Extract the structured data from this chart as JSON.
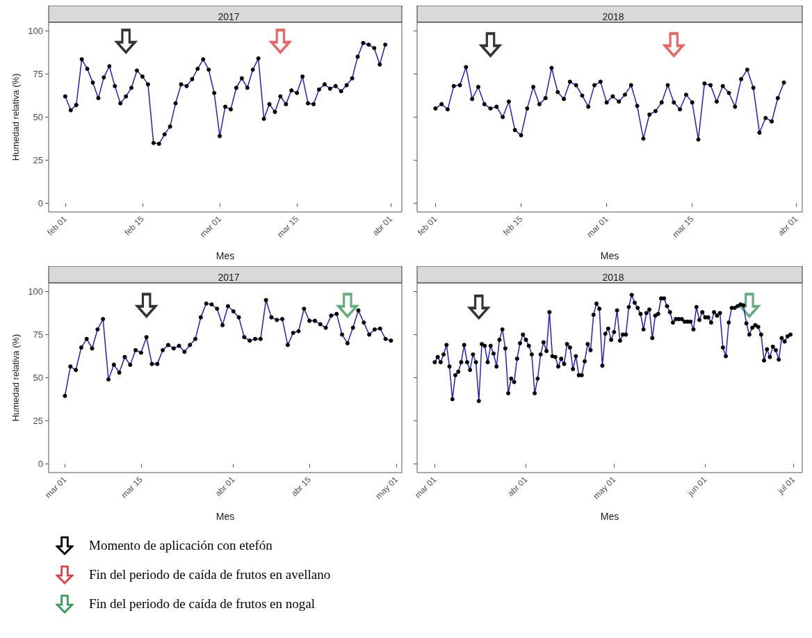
{
  "chart_data": [
    {
      "type": "line",
      "title": "2017",
      "xlabel": "Mes",
      "ylabel": "Humedad relativa (%)",
      "marker": "circle",
      "grid": false,
      "xlim": [
        "--01-29",
        "--04-03"
      ],
      "xticks": [
        {
          "value": "--02-01",
          "label": "feb 01"
        },
        {
          "value": "--02-15",
          "label": "feb 15"
        },
        {
          "value": "--03-01",
          "label": "mar 01"
        },
        {
          "value": "--03-15",
          "label": "mar 15"
        },
        {
          "value": "--04-01",
          "label": "abr 01"
        }
      ],
      "ylim": [
        -5,
        105
      ],
      "yticks": [
        0,
        25,
        50,
        75,
        100
      ],
      "x": [
        "--02-01",
        "--02-02",
        "--02-03",
        "--02-04",
        "--02-05",
        "--02-06",
        "--02-07",
        "--02-08",
        "--02-09",
        "--02-10",
        "--02-11",
        "--02-12",
        "--02-13",
        "--02-14",
        "--02-15",
        "--02-16",
        "--02-17",
        "--02-18",
        "--02-19",
        "--02-20",
        "--02-21",
        "--02-22",
        "--02-23",
        "--02-24",
        "--02-25",
        "--02-26",
        "--02-27",
        "--02-28",
        "--03-01",
        "--03-02",
        "--03-03",
        "--03-04",
        "--03-05",
        "--03-06",
        "--03-07",
        "--03-08",
        "--03-09",
        "--03-10",
        "--03-11",
        "--03-12",
        "--03-13",
        "--03-14",
        "--03-15",
        "--03-16",
        "--03-17",
        "--03-18",
        "--03-19",
        "--03-20",
        "--03-21",
        "--03-22",
        "--03-23",
        "--03-24",
        "--03-25",
        "--03-26",
        "--03-27",
        "--03-28",
        "--03-29",
        "--03-30",
        "--03-31"
      ],
      "series": [
        {
          "type": "scatter",
          "color": "#000000",
          "x": [
            "--02-12"
          ],
          "values": [
            94
          ]
        },
        {
          "type": "scatter",
          "color": "#e04040",
          "x": [
            "--03-12"
          ],
          "values": [
            94
          ]
        },
        {
          "color": "#2020c0",
          "values": [
            62,
            54,
            57,
            83.5,
            78,
            70,
            61,
            73,
            79.5,
            68,
            58,
            62,
            67,
            77,
            73.5,
            69,
            35,
            34.5,
            40,
            44.5,
            58,
            69,
            68,
            72,
            78,
            83.5,
            77.5,
            64,
            39,
            56,
            54.5,
            67,
            72.5,
            67,
            77.5,
            84,
            49,
            57.5,
            53,
            62,
            57.5,
            65.5,
            64,
            73.5,
            58,
            57.5,
            66,
            69,
            66.5,
            68,
            65,
            68.5,
            72.5,
            85,
            93,
            92,
            90,
            80.5,
            92
          ]
        }
      ]
    },
    {
      "type": "line",
      "title": "2018",
      "xlabel": "Mes",
      "marker": "circle",
      "grid": false,
      "tick_labels": "x",
      "xlim": [
        "--01-29",
        "--04-02"
      ],
      "xticks": [
        {
          "value": "--02-01",
          "label": "feb 01"
        },
        {
          "value": "--02-15",
          "label": "feb 15"
        },
        {
          "value": "--03-01",
          "label": "mar 01"
        },
        {
          "value": "--03-15",
          "label": "mar 15"
        },
        {
          "value": "--04-01",
          "label": "abr 01"
        }
      ],
      "ylim": [
        -5,
        105
      ],
      "yticks": [
        0,
        25,
        50,
        75,
        100
      ],
      "x": [
        "--02-01",
        "--02-02",
        "--02-03",
        "--02-04",
        "--02-05",
        "--02-06",
        "--02-07",
        "--02-08",
        "--02-09",
        "--02-10",
        "--02-11",
        "--02-12",
        "--02-13",
        "--02-14",
        "--02-15",
        "--02-16",
        "--02-17",
        "--02-18",
        "--02-19",
        "--02-20",
        "--02-21",
        "--02-22",
        "--02-23",
        "--02-24",
        "--02-25",
        "--02-26",
        "--02-27",
        "--02-28",
        "--03-01",
        "--03-02",
        "--03-03",
        "--03-04",
        "--03-05",
        "--03-06",
        "--03-07",
        "--03-08",
        "--03-09",
        "--03-10",
        "--03-11",
        "--03-12",
        "--03-13",
        "--03-14",
        "--03-15",
        "--03-16",
        "--03-17",
        "--03-18",
        "--03-19",
        "--03-20",
        "--03-21",
        "--03-22",
        "--03-23",
        "--03-24",
        "--03-25",
        "--03-26",
        "--03-27",
        "--03-28",
        "--03-29",
        "--03-30"
      ],
      "series": [
        {
          "type": "scatter",
          "color": "#000000",
          "x": [
            "--02-10"
          ],
          "values": [
            92
          ]
        },
        {
          "type": "scatter",
          "color": "#e04040",
          "x": [
            "--03-12"
          ],
          "values": [
            92
          ]
        },
        {
          "color": "#2020c0",
          "values": [
            55,
            57.5,
            54.5,
            68,
            68.5,
            79,
            60.5,
            67.5,
            57.5,
            55,
            56,
            50,
            59,
            42.5,
            39.5,
            55,
            67.5,
            57.5,
            61,
            78.5,
            64.5,
            60.5,
            70.5,
            68.5,
            62.5,
            56,
            68.5,
            70.5,
            58.5,
            62,
            59,
            63,
            68.5,
            56.5,
            37.5,
            51.5,
            53.5,
            58.5,
            68.5,
            58.5,
            54.5,
            63,
            58.5,
            37,
            69.5,
            68.5,
            59,
            68,
            64,
            56,
            72,
            77.5,
            67,
            41,
            49.5,
            47.5,
            61,
            70
          ]
        }
      ]
    },
    {
      "type": "line",
      "title": "2017",
      "xlabel": "Mes",
      "ylabel": "Humedad relativa (%)",
      "marker": "circle",
      "grid": false,
      "xlim": [
        "--02-26",
        "--05-02"
      ],
      "xticks": [
        {
          "value": "--03-01",
          "label": "mar 01"
        },
        {
          "value": "--03-15",
          "label": "mar 15"
        },
        {
          "value": "--04-01",
          "label": "abr 01"
        },
        {
          "value": "--04-15",
          "label": "abr 15"
        },
        {
          "value": "--05-01",
          "label": "may 01"
        }
      ],
      "ylim": [
        -5,
        105
      ],
      "yticks": [
        0,
        25,
        50,
        75,
        100
      ],
      "x": [
        "--03-01",
        "--03-02",
        "--03-03",
        "--03-04",
        "--03-05",
        "--03-06",
        "--03-07",
        "--03-08",
        "--03-09",
        "--03-10",
        "--03-11",
        "--03-12",
        "--03-13",
        "--03-14",
        "--03-15",
        "--03-16",
        "--03-17",
        "--03-18",
        "--03-19",
        "--03-20",
        "--03-21",
        "--03-22",
        "--03-23",
        "--03-24",
        "--03-25",
        "--03-26",
        "--03-27",
        "--03-28",
        "--03-29",
        "--03-30",
        "--03-31",
        "--04-01",
        "--04-02",
        "--04-03",
        "--04-04",
        "--04-05",
        "--04-06",
        "--04-07",
        "--04-08",
        "--04-09",
        "--04-10",
        "--04-11",
        "--04-12",
        "--04-13",
        "--04-14",
        "--04-15",
        "--04-16",
        "--04-17",
        "--04-18",
        "--04-19",
        "--04-20",
        "--04-21",
        "--04-22",
        "--04-23",
        "--04-24",
        "--04-25",
        "--04-26",
        "--04-27",
        "--04-28",
        "--04-29",
        "--04-30"
      ],
      "series": [
        {
          "type": "scatter",
          "color": "#000000",
          "x": [
            "--03-16"
          ],
          "values": [
            92
          ]
        },
        {
          "type": "scatter",
          "color": "#3c9a5c",
          "x": [
            "--04-22"
          ],
          "values": [
            92
          ]
        },
        {
          "color": "#2020c0",
          "values": [
            39.5,
            56.5,
            54.5,
            67.5,
            72.5,
            67,
            78,
            84,
            49,
            57.5,
            53,
            62,
            57.5,
            66,
            64.5,
            73.5,
            58,
            58,
            66,
            69,
            67,
            68.5,
            65,
            69,
            72.5,
            85,
            93,
            92.5,
            90,
            80.5,
            91.5,
            88.5,
            85,
            73.5,
            71.5,
            72.5,
            72.5,
            95,
            85,
            83.5,
            84,
            69,
            76,
            77,
            90,
            83,
            83,
            81,
            79,
            86,
            87,
            75,
            70,
            79,
            89,
            82,
            75,
            78,
            78.5,
            72.5,
            71.5
          ]
        }
      ]
    },
    {
      "type": "line",
      "title": "2018",
      "xlabel": "Mes",
      "marker": "circle",
      "grid": false,
      "tick_labels": "x",
      "xlim": [
        "--02-23",
        "--07-04"
      ],
      "xticks": [
        {
          "value": "--03-01",
          "label": "mar 01"
        },
        {
          "value": "--04-01",
          "label": "abr 01"
        },
        {
          "value": "--05-01",
          "label": "may 01"
        },
        {
          "value": "--06-01",
          "label": "jun 01"
        },
        {
          "value": "--07-01",
          "label": "jul 01"
        }
      ],
      "ylim": [
        -5,
        105
      ],
      "yticks": [
        0,
        25,
        50,
        75,
        100
      ],
      "x": [
        "--03-01",
        "--03-02",
        "--03-03",
        "--03-04",
        "--03-05",
        "--03-06",
        "--03-07",
        "--03-08",
        "--03-09",
        "--03-10",
        "--03-11",
        "--03-12",
        "--03-13",
        "--03-14",
        "--03-15",
        "--03-16",
        "--03-17",
        "--03-18",
        "--03-19",
        "--03-20",
        "--03-21",
        "--03-22",
        "--03-23",
        "--03-24",
        "--03-25",
        "--03-26",
        "--03-27",
        "--03-28",
        "--03-29",
        "--03-30",
        "--03-31",
        "--04-01",
        "--04-02",
        "--04-03",
        "--04-04",
        "--04-05",
        "--04-06",
        "--04-07",
        "--04-08",
        "--04-09",
        "--04-10",
        "--04-11",
        "--04-12",
        "--04-13",
        "--04-14",
        "--04-15",
        "--04-16",
        "--04-17",
        "--04-18",
        "--04-19",
        "--04-20",
        "--04-21",
        "--04-22",
        "--04-23",
        "--04-24",
        "--04-25",
        "--04-26",
        "--04-27",
        "--04-28",
        "--04-29",
        "--04-30",
        "--05-01",
        "--05-02",
        "--05-03",
        "--05-04",
        "--05-05",
        "--05-06",
        "--05-07",
        "--05-08",
        "--05-09",
        "--05-10",
        "--05-11",
        "--05-12",
        "--05-13",
        "--05-14",
        "--05-15",
        "--05-16",
        "--05-17",
        "--05-18",
        "--05-19",
        "--05-20",
        "--05-21",
        "--05-22",
        "--05-23",
        "--05-24",
        "--05-25",
        "--05-26",
        "--05-27",
        "--05-28",
        "--05-29",
        "--05-30",
        "--05-31",
        "--06-01",
        "--06-02",
        "--06-03",
        "--06-04",
        "--06-05",
        "--06-06",
        "--06-07",
        "--06-08",
        "--06-09",
        "--06-10",
        "--06-11",
        "--06-12",
        "--06-13",
        "--06-14",
        "--06-15",
        "--06-16",
        "--06-17",
        "--06-18",
        "--06-19",
        "--06-20",
        "--06-21",
        "--06-22",
        "--06-23",
        "--06-24",
        "--06-25",
        "--06-26",
        "--06-27",
        "--06-28",
        "--06-29",
        "--06-30"
      ],
      "series": [
        {
          "type": "scatter",
          "color": "#000000",
          "x": [
            "--03-16"
          ],
          "values": [
            91
          ]
        },
        {
          "type": "scatter",
          "color": "#3c9a5c",
          "x": [
            "--06-16"
          ],
          "values": [
            92
          ]
        },
        {
          "color": "#2020c0",
          "values": [
            59,
            62,
            59,
            63.5,
            69,
            56.5,
            37.5,
            51.5,
            53.5,
            59,
            69,
            59,
            54.5,
            63.5,
            59,
            36.5,
            69.5,
            68.5,
            59,
            68.5,
            64,
            56.5,
            72,
            78,
            67,
            41,
            49.5,
            47.5,
            61,
            70,
            75,
            72,
            68.5,
            63.5,
            41,
            49.5,
            63.5,
            70.5,
            65.5,
            88,
            62.5,
            62,
            56.5,
            61,
            58,
            69.5,
            67.5,
            55,
            62.5,
            51.5,
            51.5,
            59.5,
            69.5,
            66,
            86.5,
            93,
            90,
            57,
            75.5,
            78.5,
            72,
            76.5,
            89,
            71.5,
            75,
            75,
            91,
            98,
            93.5,
            90.5,
            87,
            78,
            87.5,
            89.5,
            73,
            86,
            87,
            96,
            96,
            91.5,
            88,
            82,
            84,
            84,
            84,
            82.5,
            82.5,
            82.5,
            78,
            91,
            83.5,
            88,
            85,
            85,
            82,
            88,
            86,
            87.5,
            67.5,
            62.5,
            82,
            90.5,
            90.5,
            91.5,
            92.5,
            92,
            81.5,
            75,
            79,
            80.5,
            79.5,
            75,
            60,
            66.5,
            62,
            68,
            66,
            60.5,
            73,
            71,
            74,
            75
          ]
        }
      ]
    },
    {
      "type": "other",
      "annotations": [
        "Momento de aplicación con etefón",
        "Fin del periodo de caída de frutos en avellano",
        "Fin del periodo de caída de frutos en nogal"
      ],
      "colors": [
        "#000000",
        "#e04040",
        "#3c9a5c"
      ]
    }
  ]
}
